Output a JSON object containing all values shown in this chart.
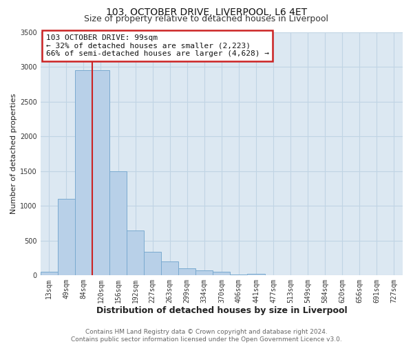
{
  "title": "103, OCTOBER DRIVE, LIVERPOOL, L6 4ET",
  "subtitle": "Size of property relative to detached houses in Liverpool",
  "xlabel": "Distribution of detached houses by size in Liverpool",
  "ylabel": "Number of detached properties",
  "bin_labels": [
    "13sqm",
    "49sqm",
    "84sqm",
    "120sqm",
    "156sqm",
    "192sqm",
    "227sqm",
    "263sqm",
    "299sqm",
    "334sqm",
    "370sqm",
    "406sqm",
    "441sqm",
    "477sqm",
    "513sqm",
    "549sqm",
    "584sqm",
    "620sqm",
    "656sqm",
    "691sqm",
    "727sqm"
  ],
  "bar_values": [
    50,
    1100,
    2950,
    2950,
    1500,
    650,
    340,
    205,
    100,
    75,
    50,
    15,
    20,
    0,
    0,
    0,
    0,
    0,
    0,
    0,
    0
  ],
  "bar_color": "#b8d0e8",
  "bar_edge_color": "#7aaad0",
  "red_line_x": 2.5,
  "red_line_color": "#cc2222",
  "annotation_text_line1": "103 OCTOBER DRIVE: 99sqm",
  "annotation_text_line2": "← 32% of detached houses are smaller (2,223)",
  "annotation_text_line3": "66% of semi-detached houses are larger (4,628) →",
  "annotation_box_facecolor": "#ffffff",
  "annotation_box_edgecolor": "#cc2222",
  "ylim": [
    0,
    3500
  ],
  "yticks": [
    0,
    500,
    1000,
    1500,
    2000,
    2500,
    3000,
    3500
  ],
  "grid_color": "#c0d4e4",
  "fig_facecolor": "#ffffff",
  "plot_facecolor": "#dce8f2",
  "title_fontsize": 10,
  "subtitle_fontsize": 9,
  "xlabel_fontsize": 9,
  "ylabel_fontsize": 8,
  "tick_fontsize": 7,
  "annot_fontsize": 8,
  "footer_fontsize": 6.5,
  "footer_line1": "Contains HM Land Registry data © Crown copyright and database right 2024.",
  "footer_line2": "Contains public sector information licensed under the Open Government Licence v3.0."
}
